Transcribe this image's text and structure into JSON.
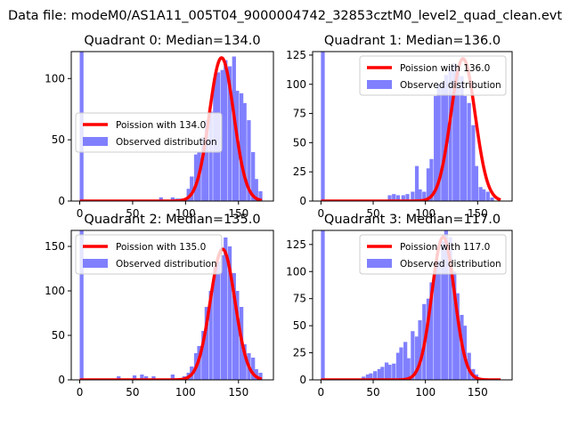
{
  "suptitle": "Data file: modeM0/AS1A11_005T04_9000004742_32853cztM0_level2_quad_clean.evt",
  "legend_labels": {
    "observed": "Observed distribution"
  },
  "colors": {
    "hist": "#8080ff",
    "poisson": "#ff0000",
    "frame": "#000000"
  },
  "chart_data": [
    {
      "type": "bar",
      "title": "Quadrant 0: Median=134.0",
      "poisson_label": "Poission with 134.0",
      "legend_position": "center-left",
      "xlim": [
        -8,
        183
      ],
      "ylim": [
        0,
        122
      ],
      "xticks": [
        0,
        50,
        100,
        150
      ],
      "yticks": [
        0,
        50,
        100
      ],
      "bin_width": 3.6,
      "bins_left": [
        0,
        64,
        75,
        86,
        90,
        93,
        97,
        101,
        104,
        108,
        111,
        115,
        118,
        122,
        126,
        129,
        133,
        136,
        140,
        144,
        147,
        151,
        154,
        158,
        162,
        165,
        169
      ],
      "counts": [
        122,
        1,
        3,
        3,
        2,
        2,
        2,
        10,
        20,
        38,
        40,
        52,
        66,
        73,
        100,
        105,
        107,
        115,
        110,
        118,
        90,
        88,
        80,
        66,
        40,
        18,
        8
      ],
      "poisson_mean": 134.0,
      "poisson_peak": 117
    },
    {
      "type": "bar",
      "title": "Quadrant 1: Median=136.0",
      "poisson_label": "Poission with 136.0",
      "legend_position": "top-right",
      "xlim": [
        -8,
        183
      ],
      "ylim": [
        0,
        128
      ],
      "xticks": [
        0,
        50,
        100,
        150
      ],
      "yticks": [
        0,
        25,
        50,
        75,
        100,
        125
      ],
      "bin_width": 3.6,
      "bins_left": [
        0,
        64,
        68,
        72,
        77,
        81,
        86,
        90,
        93,
        97,
        101,
        104,
        108,
        111,
        115,
        118,
        122,
        126,
        129,
        133,
        136,
        140,
        144,
        147,
        151,
        154,
        158,
        162
      ],
      "counts": [
        128,
        5,
        6,
        5,
        5,
        6,
        8,
        30,
        10,
        8,
        28,
        36,
        90,
        100,
        102,
        108,
        115,
        118,
        110,
        107,
        90,
        84,
        65,
        30,
        12,
        10,
        8,
        3
      ],
      "poisson_mean": 136.0,
      "poisson_peak": 122
    },
    {
      "type": "bar",
      "title": "Quadrant 2: Median=135.0",
      "poisson_label": "Poission with 135.0",
      "legend_position": "top-left",
      "xlim": [
        -8,
        183
      ],
      "ylim": [
        0,
        168
      ],
      "xticks": [
        0,
        50,
        100,
        150
      ],
      "yticks": [
        0,
        50,
        100,
        150
      ],
      "bin_width": 3.6,
      "bins_left": [
        0,
        35,
        50,
        57,
        61,
        68,
        86,
        97,
        101,
        104,
        108,
        111,
        115,
        118,
        122,
        126,
        129,
        133,
        136,
        140,
        144,
        147,
        151,
        154,
        158,
        162,
        165,
        169
      ],
      "counts": [
        168,
        4,
        5,
        6,
        4,
        4,
        6,
        4,
        8,
        15,
        30,
        38,
        55,
        82,
        100,
        128,
        133,
        140,
        160,
        150,
        120,
        100,
        82,
        40,
        30,
        25,
        12,
        8
      ],
      "poisson_mean": 135.0,
      "poisson_peak": 147
    },
    {
      "type": "bar",
      "title": "Quadrant 3: Median=117.0",
      "poisson_label": "Poission with 117.0",
      "legend_position": "top-right",
      "xlim": [
        -8,
        183
      ],
      "ylim": [
        0,
        138
      ],
      "xticks": [
        0,
        50,
        100,
        150
      ],
      "yticks": [
        0,
        25,
        50,
        75,
        100,
        125
      ],
      "bin_width": 3.6,
      "bins_left": [
        0,
        39,
        43,
        46,
        50,
        54,
        57,
        61,
        64,
        68,
        72,
        75,
        79,
        82,
        86,
        90,
        93,
        97,
        101,
        104,
        108,
        111,
        115,
        118,
        122,
        126,
        129,
        133,
        136,
        140,
        144,
        147
      ],
      "counts": [
        138,
        3,
        5,
        6,
        8,
        10,
        12,
        16,
        14,
        15,
        25,
        30,
        35,
        20,
        45,
        40,
        55,
        70,
        75,
        90,
        105,
        110,
        128,
        138,
        132,
        100,
        80,
        60,
        50,
        25,
        10,
        5
      ],
      "poisson_mean": 117.0,
      "poisson_peak": 132
    }
  ]
}
